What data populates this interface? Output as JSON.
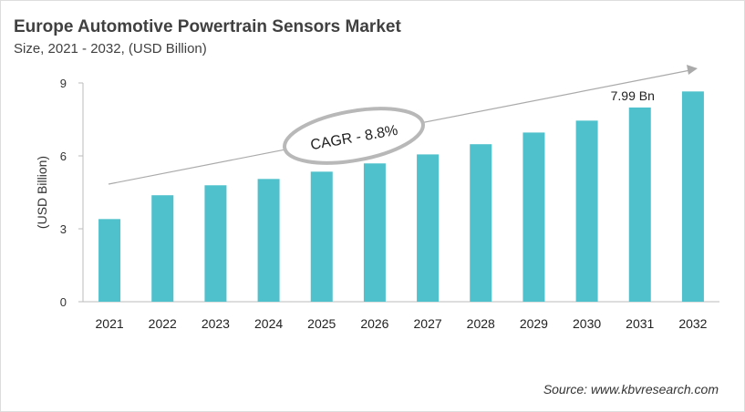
{
  "chart_data": {
    "type": "bar",
    "title": "Europe Automotive Powertrain Sensors Market",
    "subtitle": "Size, 2021 - 2032, (USD Billion)",
    "ylabel": "(USD Billion)",
    "xlabel": "",
    "categories": [
      "2021",
      "2022",
      "2023",
      "2024",
      "2025",
      "2026",
      "2027",
      "2028",
      "2029",
      "2030",
      "2031",
      "2032"
    ],
    "values": [
      3.4,
      4.38,
      4.79,
      5.05,
      5.35,
      5.69,
      6.06,
      6.48,
      6.96,
      7.45,
      7.99,
      8.65
    ],
    "ylim": [
      0,
      9
    ],
    "yticks": [
      "0",
      "3",
      "6",
      "9"
    ],
    "grid": false,
    "bar_color": "#4fc1cc",
    "data_label": {
      "category": "2031",
      "text": "7.99 Bn"
    },
    "annotation": "CAGR - 8.8%",
    "source": "Source: www.kbvresearch.com"
  }
}
